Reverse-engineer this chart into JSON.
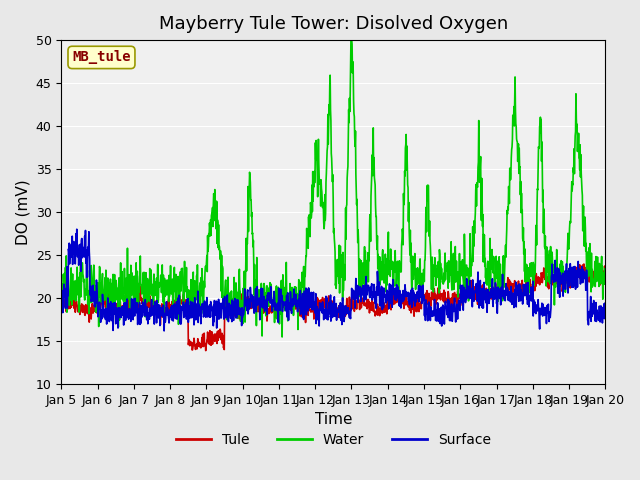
{
  "title": "Mayberry Tule Tower: Disolved Oxygen",
  "xlabel": "Time",
  "ylabel": "DO (mV)",
  "ylim": [
    10,
    50
  ],
  "yticks": [
    10,
    15,
    20,
    25,
    30,
    35,
    40,
    45,
    50
  ],
  "xlim_days": [
    0,
    15
  ],
  "xtick_labels": [
    "Jan 5",
    "Jan 6",
    "Jan 7",
    "Jan 8",
    "Jan 9",
    "Jan 10",
    "Jan 11",
    "Jan 12",
    "Jan 13",
    "Jan 14",
    "Jan 15",
    "Jan 16",
    "Jan 17",
    "Jan 18",
    "Jan 19",
    "Jan 20"
  ],
  "legend_labels": [
    "Tule",
    "Water",
    "Surface"
  ],
  "colors": {
    "tule": "#cc0000",
    "water": "#00cc00",
    "surface": "#0000cc"
  },
  "annotation_text": "MB_tule",
  "annotation_bg": "#ffffcc",
  "annotation_border": "#999900",
  "background_color": "#e8e8e8",
  "plot_bg": "#f0f0f0",
  "grid_color": "#ffffff",
  "title_fontsize": 13,
  "axis_fontsize": 11,
  "tick_fontsize": 9,
  "legend_fontsize": 10,
  "line_width": 1.2
}
